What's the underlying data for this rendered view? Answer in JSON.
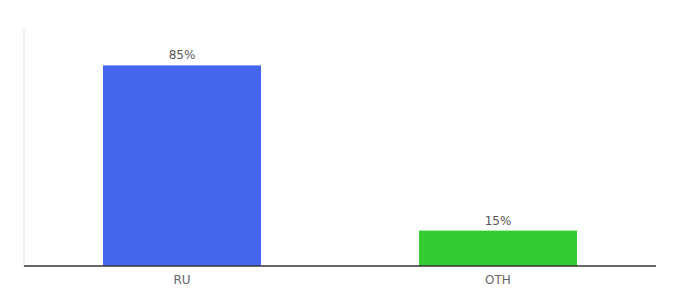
{
  "chart_data": {
    "type": "bar",
    "categories": [
      "RU",
      "OTH"
    ],
    "values": [
      85,
      15
    ],
    "value_labels": [
      "85%",
      "15%"
    ],
    "data_labels": true,
    "colors": [
      "#4466ee",
      "#33cc33"
    ],
    "ylim": [
      0,
      100
    ],
    "yticks": [],
    "tick_labels": "x"
  }
}
